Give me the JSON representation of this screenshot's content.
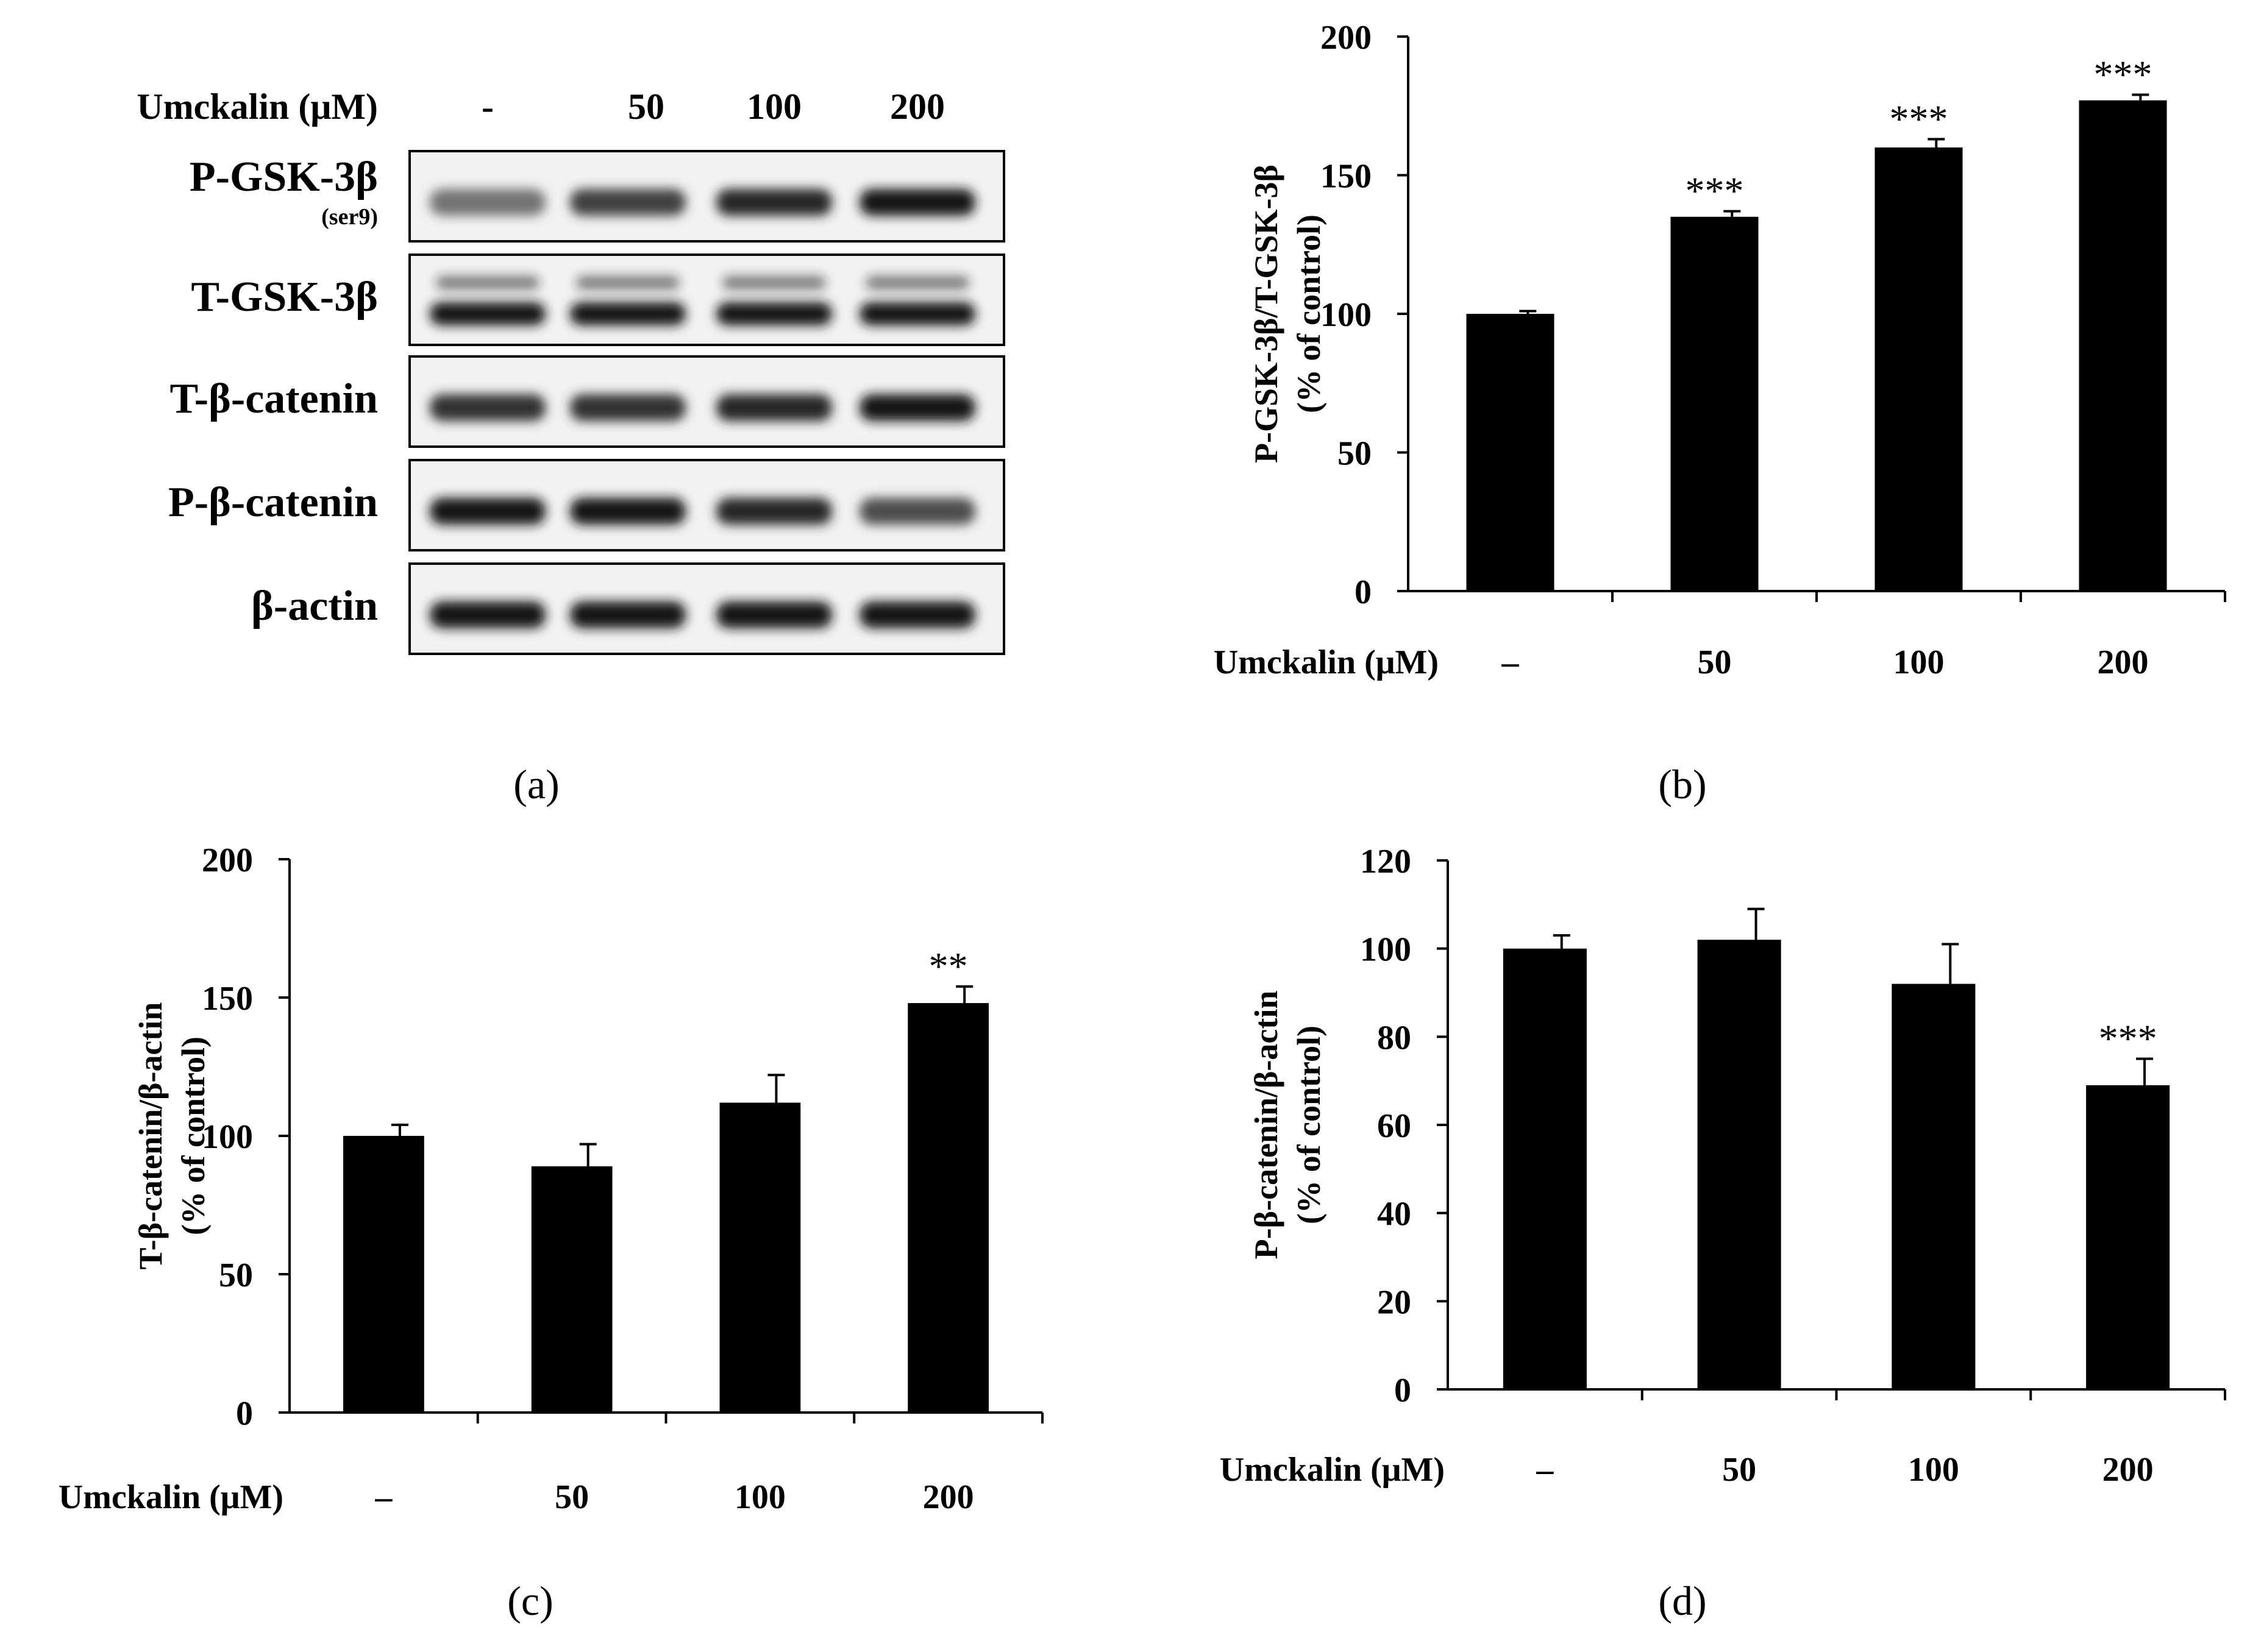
{
  "panel_labels": {
    "a": "(a)",
    "b": "(b)",
    "c": "(c)",
    "d": "(d)"
  },
  "blot": {
    "header_label": "Umckalin (μM)",
    "lanes": [
      "-",
      "50",
      "100",
      "200"
    ],
    "rows": [
      {
        "label": "P-GSK-3β",
        "sublabel": "(ser9)",
        "intensities": [
          0.55,
          0.75,
          0.85,
          0.9
        ],
        "double_band": false
      },
      {
        "label": "T-GSK-3β",
        "sublabel": "",
        "intensities": [
          0.9,
          0.9,
          0.9,
          0.9
        ],
        "double_band": true
      },
      {
        "label": "T-β-catenin",
        "sublabel": "",
        "intensities": [
          0.8,
          0.8,
          0.85,
          0.9
        ],
        "double_band": false
      },
      {
        "label": "P-β-catenin",
        "sublabel": "",
        "intensities": [
          0.9,
          0.9,
          0.85,
          0.7
        ],
        "double_band": false
      },
      {
        "label": "β-actin",
        "sublabel": "",
        "intensities": [
          0.9,
          0.9,
          0.9,
          0.9
        ],
        "double_band": false
      }
    ]
  },
  "chart_data": [
    {
      "panel": "b",
      "type": "bar",
      "categories": [
        "–",
        "50",
        "100",
        "200"
      ],
      "values": [
        100,
        135,
        160,
        177
      ],
      "errors": [
        1,
        2,
        3,
        2
      ],
      "significance": [
        "",
        "***",
        "***",
        "***"
      ],
      "ylabel": "P-GSK-3β/T-GSK-3β",
      "ylabel2": "(% of control)",
      "xlabel": "Umckalin (μM)",
      "ylim": [
        0,
        200
      ],
      "yticks": [
        "0",
        "50",
        "100",
        "150",
        "200"
      ]
    },
    {
      "panel": "c",
      "type": "bar",
      "categories": [
        "–",
        "50",
        "100",
        "200"
      ],
      "values": [
        100,
        89,
        112,
        148
      ],
      "errors": [
        4,
        8,
        10,
        6
      ],
      "significance": [
        "",
        "",
        "",
        "**"
      ],
      "ylabel": "T-β-catenin/β-actin",
      "ylabel2": "(% of control)",
      "xlabel": "Umckalin (μM)",
      "ylim": [
        0,
        200
      ],
      "yticks": [
        "0",
        "50",
        "100",
        "150",
        "200"
      ]
    },
    {
      "panel": "d",
      "type": "bar",
      "categories": [
        "–",
        "50",
        "100",
        "200"
      ],
      "values": [
        100,
        102,
        92,
        69
      ],
      "errors": [
        3,
        7,
        9,
        6
      ],
      "significance": [
        "",
        "",
        "",
        "***"
      ],
      "ylabel": "P-β-catenin/β-actin",
      "ylabel2": "(% of control)",
      "xlabel": "Umckalin (μM)",
      "ylim": [
        0,
        120
      ],
      "yticks": [
        "0",
        "20",
        "40",
        "60",
        "80",
        "100",
        "120"
      ]
    }
  ]
}
